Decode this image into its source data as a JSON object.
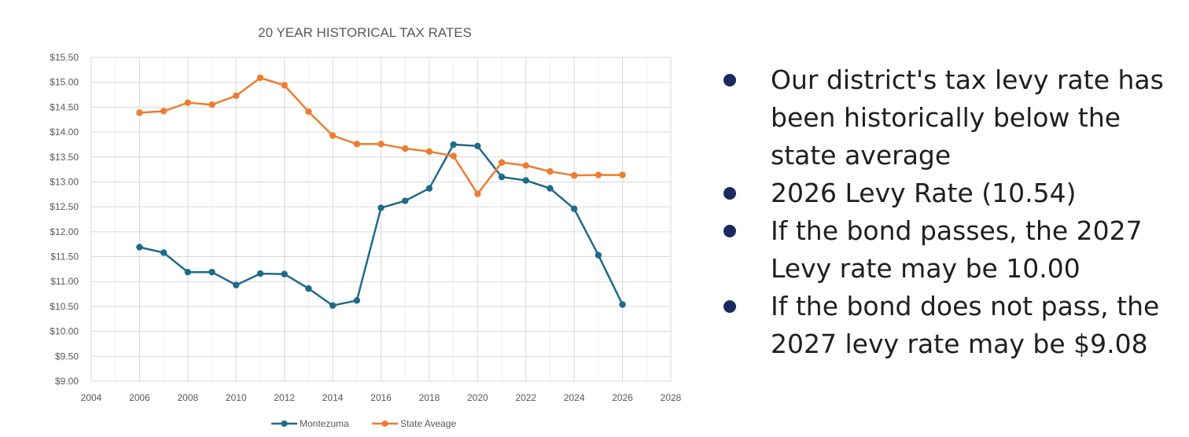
{
  "chart_data": {
    "type": "line",
    "title": "20 YEAR HISTORICAL TAX RATES",
    "xlabel": "",
    "ylabel": "",
    "xlim": [
      2004,
      2028
    ],
    "ylim": [
      9.0,
      15.5
    ],
    "x_ticks": [
      "2004",
      "2006",
      "2008",
      "2010",
      "2012",
      "2014",
      "2016",
      "2018",
      "2020",
      "2022",
      "2024",
      "2026",
      "2028"
    ],
    "y_ticks": [
      "$9.00",
      "$9.50",
      "$10.00",
      "$10.50",
      "$11.00",
      "$11.50",
      "$12.00",
      "$12.50",
      "$13.00",
      "$13.50",
      "$14.00",
      "$14.50",
      "$15.00",
      "$15.50"
    ],
    "grid": true,
    "legend_position": "bottom",
    "x": [
      2006,
      2007,
      2008,
      2009,
      2010,
      2011,
      2012,
      2013,
      2014,
      2015,
      2016,
      2017,
      2018,
      2019,
      2020,
      2021,
      2022,
      2023,
      2024,
      2025,
      2026
    ],
    "series": [
      {
        "name": "Montezuma",
        "color": "#1f6a8a",
        "values": [
          11.69,
          11.58,
          11.19,
          11.19,
          10.93,
          11.16,
          11.15,
          10.86,
          10.52,
          10.62,
          12.48,
          12.62,
          12.87,
          13.75,
          13.72,
          13.1,
          13.03,
          12.87,
          12.46,
          11.53,
          10.54
        ]
      },
      {
        "name": "State Aveage",
        "color": "#ed7d31",
        "values": [
          14.39,
          14.42,
          14.59,
          14.55,
          14.73,
          15.09,
          14.94,
          14.41,
          13.93,
          13.76,
          13.76,
          13.67,
          13.61,
          13.52,
          12.76,
          13.39,
          13.33,
          13.21,
          13.13,
          13.14,
          13.14
        ]
      }
    ]
  },
  "bullets": [
    "Our district's tax levy rate has been historically below the state average",
    "2026 Levy Rate (10.54)",
    "If the bond passes, the 2027 Levy rate may be 10.00",
    "If the bond does not pass, the 2027 levy rate may be $9.08"
  ]
}
